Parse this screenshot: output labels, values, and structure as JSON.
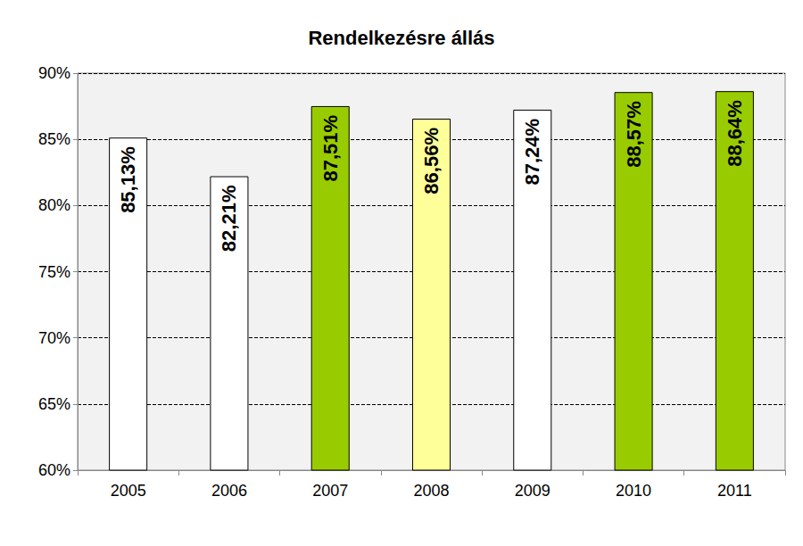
{
  "chart_data": {
    "type": "bar",
    "title": "Rendelkezésre állás",
    "categories": [
      "2005",
      "2006",
      "2007",
      "2008",
      "2009",
      "2010",
      "2011"
    ],
    "values": [
      85.13,
      82.21,
      87.51,
      86.56,
      87.24,
      88.57,
      88.64
    ],
    "value_labels": [
      "85,13%",
      "82,21%",
      "87,51%",
      "86,56%",
      "87,24%",
      "88,57%",
      "88,64%"
    ],
    "colors": [
      "#ffffff",
      "#ffffff",
      "#99cc00",
      "#ffff99",
      "#ffffff",
      "#99cc00",
      "#99cc00"
    ],
    "ylim": [
      60,
      90
    ],
    "yticks": [
      {
        "value": 60,
        "label": "60%"
      },
      {
        "value": 65,
        "label": "65%"
      },
      {
        "value": 70,
        "label": "70%"
      },
      {
        "value": 75,
        "label": "75%"
      },
      {
        "value": 80,
        "label": "80%"
      },
      {
        "value": 85,
        "label": "85%"
      },
      {
        "value": 90,
        "label": "90%"
      }
    ],
    "grid": true,
    "data_labels": true
  }
}
